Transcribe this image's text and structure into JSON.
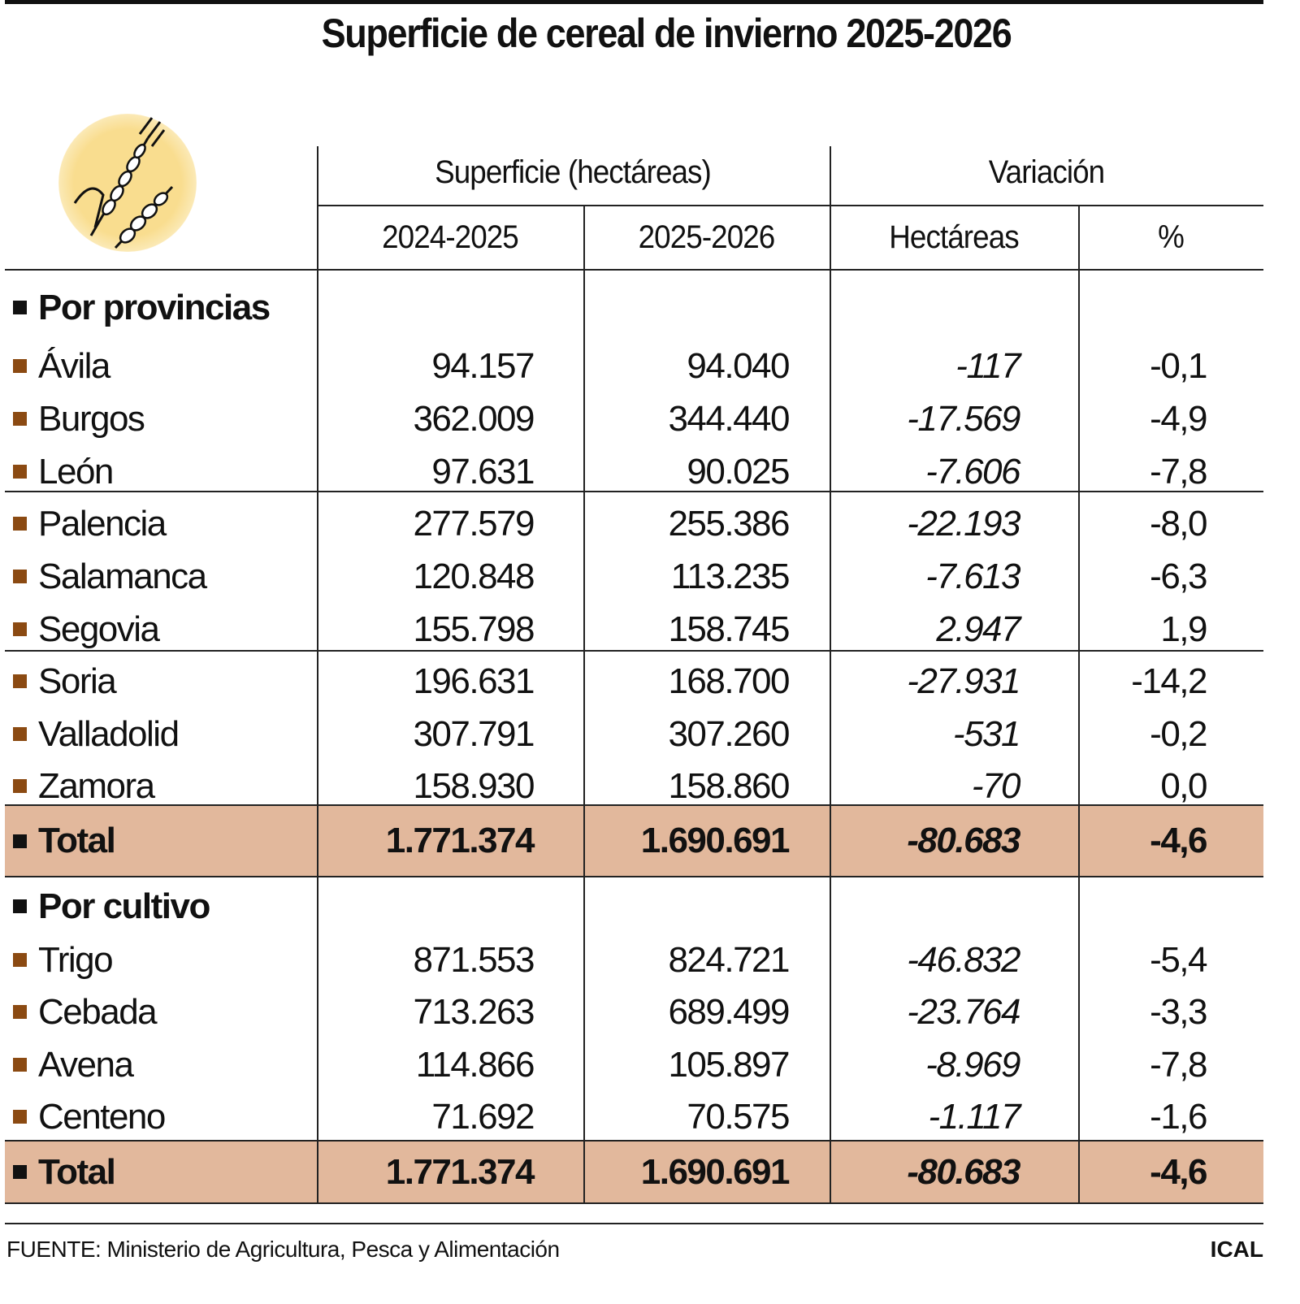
{
  "title": "Superficie de cereal de invierno 2025-2026",
  "colors": {
    "row_square": "#8b4a12",
    "section_square": "#111111",
    "total_row": "#e2b89c",
    "icon_circle": "#f9dd8f"
  },
  "icon": "wheat-icon",
  "header": {
    "group1": "Superficie (hectáreas)",
    "group2": "Variación",
    "columns": [
      "2024-2025",
      "2025-2026",
      "Hectáreas",
      "%"
    ]
  },
  "chart_data": {
    "type": "table",
    "title": "Superficie de cereal de invierno 2025-2026",
    "columns": [
      "2024-2025",
      "2025-2026",
      "Hectáreas",
      "%"
    ],
    "sections": [
      {
        "heading": "Por provincias",
        "rows": [
          {
            "label": "Ávila",
            "values": [
              "94.157",
              "94.040",
              "-117",
              "-0,1"
            ]
          },
          {
            "label": "Burgos",
            "values": [
              "362.009",
              "344.440",
              "-17.569",
              "-4,9"
            ]
          },
          {
            "label": "León",
            "values": [
              "97.631",
              "90.025",
              "-7.606",
              "-7,8"
            ]
          },
          {
            "label": "Palencia",
            "values": [
              "277.579",
              "255.386",
              "-22.193",
              "-8,0"
            ]
          },
          {
            "label": "Salamanca",
            "values": [
              "120.848",
              "113.235",
              "-7.613",
              "-6,3"
            ]
          },
          {
            "label": "Segovia",
            "values": [
              "155.798",
              "158.745",
              "2.947",
              "1,9"
            ]
          },
          {
            "label": "Soria",
            "values": [
              "196.631",
              "168.700",
              "-27.931",
              "-14,2"
            ]
          },
          {
            "label": "Valladolid",
            "values": [
              "307.791",
              "307.260",
              "-531",
              "-0,2"
            ]
          },
          {
            "label": "Zamora",
            "values": [
              "158.930",
              "158.860",
              "-70",
              "0,0"
            ]
          }
        ],
        "total": {
          "label": "Total",
          "values": [
            "1.771.374",
            "1.690.691",
            "-80.683",
            "-4,6"
          ]
        }
      },
      {
        "heading": "Por cultivo",
        "rows": [
          {
            "label": "Trigo",
            "values": [
              "871.553",
              "824.721",
              "-46.832",
              "-5,4"
            ]
          },
          {
            "label": "Cebada",
            "values": [
              "713.263",
              "689.499",
              "-23.764",
              "-3,3"
            ]
          },
          {
            "label": "Avena",
            "values": [
              "114.866",
              "105.897",
              "-8.969",
              "-7,8"
            ]
          },
          {
            "label": "Centeno",
            "values": [
              "71.692",
              "70.575",
              "-1.117",
              "-1,6"
            ]
          }
        ],
        "total": {
          "label": "Total",
          "values": [
            "1.771.374",
            "1.690.691",
            "-80.683",
            "-4,6"
          ]
        }
      }
    ]
  },
  "footer": {
    "source": "FUENTE: Ministerio de Agricultura, Pesca y Alimentación",
    "brand": "ICAL"
  }
}
